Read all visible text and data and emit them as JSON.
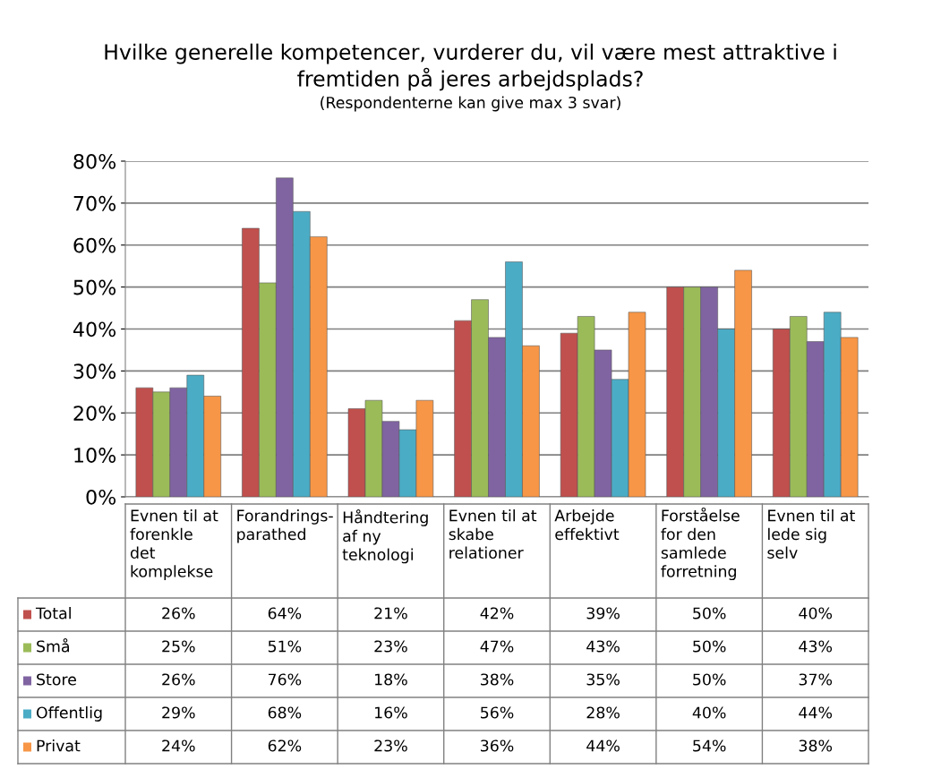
{
  "chart_data": {
    "type": "bar",
    "title": "Hvilke generelle kompetencer, vurderer du, vil være mest attraktive i\nfremtiden på jeres arbejdsplads?",
    "subtitle": "(Respondenterne kan give max 3 svar)",
    "categories": [
      "Evnen til at\nforenkle\ndet\nkomplekse",
      "Forandrings-\nparathed",
      "Håndtering\naf ny\nteknologi",
      "Evnen til at\nskabe\nrelationer",
      "Arbejde\neffektivt",
      "Forståelse\nfor den\nsamlede\nforretning",
      "Evnen til at\nlede sig\nselv"
    ],
    "series": [
      {
        "name": "Total",
        "color": "#c0504d",
        "values": [
          26,
          64,
          21,
          42,
          39,
          50,
          40
        ],
        "value_labels": [
          "26%",
          "64%",
          "21%",
          "42%",
          "39%",
          "50%",
          "40%"
        ]
      },
      {
        "name": "Små",
        "color": "#9bbb59",
        "values": [
          25,
          51,
          23,
          47,
          43,
          50,
          43
        ],
        "value_labels": [
          "25%",
          "51%",
          "23%",
          "47%",
          "43%",
          "50%",
          "43%"
        ]
      },
      {
        "name": "Store",
        "color": "#8064a2",
        "values": [
          26,
          76,
          18,
          38,
          35,
          50,
          37
        ],
        "value_labels": [
          "26%",
          "76%",
          "18%",
          "38%",
          "35%",
          "50%",
          "37%"
        ]
      },
      {
        "name": "Offentlig",
        "color": "#4bacc6",
        "values": [
          29,
          68,
          16,
          56,
          28,
          40,
          44
        ],
        "value_labels": [
          "29%",
          "68%",
          "16%",
          "56%",
          "28%",
          "40%",
          "44%"
        ]
      },
      {
        "name": "Privat",
        "color": "#f79646",
        "values": [
          24,
          62,
          23,
          36,
          44,
          54,
          38
        ],
        "value_labels": [
          "24%",
          "62%",
          "23%",
          "36%",
          "44%",
          "54%",
          "38%"
        ]
      }
    ],
    "ylim": [
      0,
      80
    ],
    "yticks": [
      {
        "value": 0,
        "label": "0%"
      },
      {
        "value": 10,
        "label": "10%"
      },
      {
        "value": 20,
        "label": "20%"
      },
      {
        "value": 30,
        "label": "30%"
      },
      {
        "value": 40,
        "label": "40%"
      },
      {
        "value": 50,
        "label": "50%"
      },
      {
        "value": 60,
        "label": "60%"
      },
      {
        "value": 70,
        "label": "70%"
      },
      {
        "value": 80,
        "label": "80%"
      }
    ],
    "grid": "y",
    "legend": "bottom"
  }
}
